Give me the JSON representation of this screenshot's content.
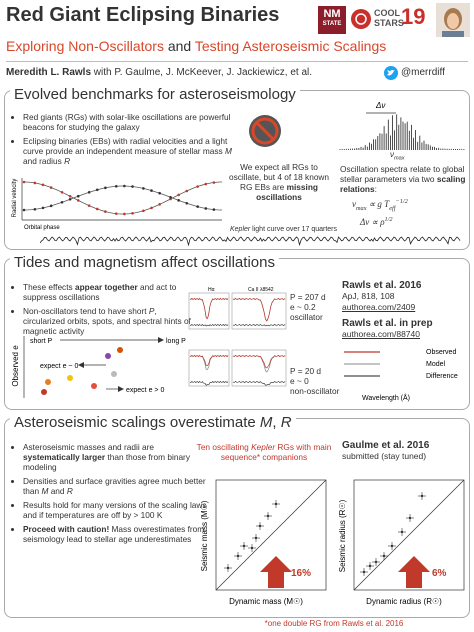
{
  "header": {
    "title": "Red Giant Eclipsing Binaries",
    "subtitle": [
      "Exploring Non-Oscillators",
      " and ",
      "Testing Asteroseismic Scalings"
    ],
    "author": "Meredith L. Rawls",
    "coauthors": " with P. Gaulme, J. McKeever, J. Jackiewicz, et al.",
    "handle": "@merrdiff",
    "logo_nm": [
      "NM",
      "STATE"
    ],
    "logo_cs": [
      "COOL",
      "STARS",
      "19"
    ]
  },
  "section1": {
    "title": "Evolved benchmarks for asteroseismology",
    "bullets": [
      [
        "Red giants (RGs) with solar-like oscillations are powerful beacons for studying the galaxy"
      ],
      [
        "Eclipsing binaries (EBs) with radial velocities and a light curve provide an independent measure of stellar mass ",
        "M",
        " and radius ",
        "R"
      ]
    ],
    "rv_ylabel": "Radial velocity",
    "rv_xlabel": "Orbital phase",
    "missing": [
      "We expect all RGs to oscillate, but 4 of 18 known RG EBs are ",
      "missing oscillations"
    ],
    "dnu": "Δν",
    "numax": [
      "ν",
      "max"
    ],
    "scaling": [
      "Oscillation spectra relate to global stellar parameters via two ",
      "scaling relations",
      ":"
    ],
    "relation1": [
      "ν",
      "max",
      " ∝ g T",
      "eff",
      "−1/2"
    ],
    "relation2": [
      "Δν ∝ ρ",
      "1/2"
    ],
    "lightcurve_caption": [
      "Kepler",
      " light curve over 17 quarters"
    ]
  },
  "section2": {
    "title": "Tides and magnetism affect oscillations",
    "bullets": [
      [
        "These effects ",
        "appear together",
        " and act to suppress oscillations"
      ],
      [
        "Non-oscillators tend to have short ",
        "P",
        ", circularized orbits, spots, and spectral hints of magnetic activity"
      ]
    ],
    "e_ylabel": "Observed e",
    "short_p": "short P",
    "long_p": "long P",
    "expect_low": "expect e ~ 0",
    "expect_high": "expect e > 0",
    "osc": [
      "P = 207 d",
      "e ~ 0.2",
      "oscillator"
    ],
    "nonosc": [
      "P = 20 d",
      "e ~ 0",
      "non-oscillator"
    ],
    "halpha": "Hα",
    "ca": "Ca II λ8542",
    "wavelength": "Wavelength (Å)",
    "legend": [
      "Observed",
      "Model",
      "Difference"
    ],
    "ref1": [
      "Rawls et al. 2016",
      "ApJ, 818, 108",
      "authorea.com/2409"
    ],
    "ref2": [
      "Rawls et al. in prep",
      "authorea.com/88740"
    ]
  },
  "section3": {
    "title": [
      "Asteroseismic scalings overestimate ",
      "M",
      ", ",
      "R"
    ],
    "bullets": [
      [
        "Asteroseismic masses and radii are ",
        "systematically larger",
        " than those from binary modeling"
      ],
      [
        "Densities and surface gravities agree much better than ",
        "M",
        " and ",
        "R"
      ],
      [
        "Results hold for many versions of the scaling laws and if temperatures are off by > 100 K"
      ],
      [
        "Proceed with caution!",
        " Mass overestimates from seismology lead to stellar age underestimates"
      ]
    ],
    "sample": [
      "Ten oscillating ",
      "Kepler",
      " RGs with main sequence* companions"
    ],
    "ref": [
      "Gaulme et al. 2016",
      "submitted (stay tuned)"
    ],
    "mass_ylabel": "Seismic mass (M☉)",
    "mass_xlabel": "Dynamic mass (M☉)",
    "mass_pct": "16%",
    "radius_ylabel": "Seismic radius (R☉)",
    "radius_xlabel": "Dynamic radius (R☉)",
    "radius_pct": "6%",
    "footnote": "*one double RG from Rawls et al. 2016"
  }
}
